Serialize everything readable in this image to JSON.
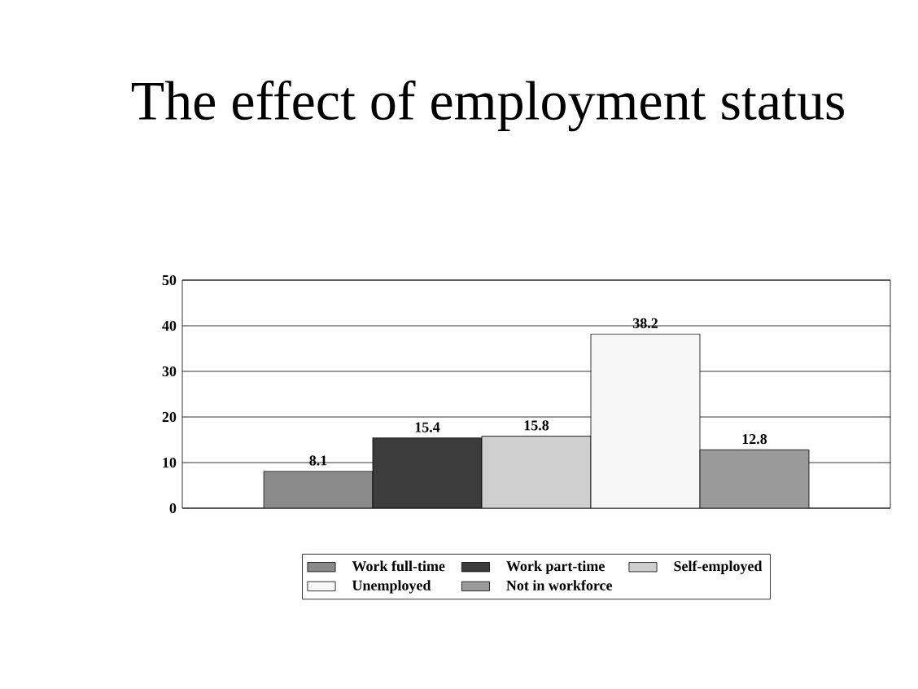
{
  "chart_data": {
    "type": "bar",
    "title": "The effect of employment status",
    "categories": [
      null
    ],
    "series": [
      {
        "name": "Work full-time",
        "color": "#8a8a8a",
        "values": [
          8.1
        ]
      },
      {
        "name": "Work part-time",
        "color": "#3c3c3c",
        "values": [
          15.4
        ]
      },
      {
        "name": "Self-employed",
        "color": "#cfcfcf",
        "values": [
          15.8
        ]
      },
      {
        "name": "Unemployed",
        "color": "#f7f7f7",
        "values": [
          38.2
        ]
      },
      {
        "name": "Not in workforce",
        "color": "#9a9a9a",
        "values": [
          12.8
        ]
      }
    ],
    "ylim": [
      0,
      50
    ],
    "yticks": [
      0,
      10,
      20,
      30,
      40,
      50
    ],
    "grid": "y",
    "legend": "bottom",
    "data_labels": true
  }
}
